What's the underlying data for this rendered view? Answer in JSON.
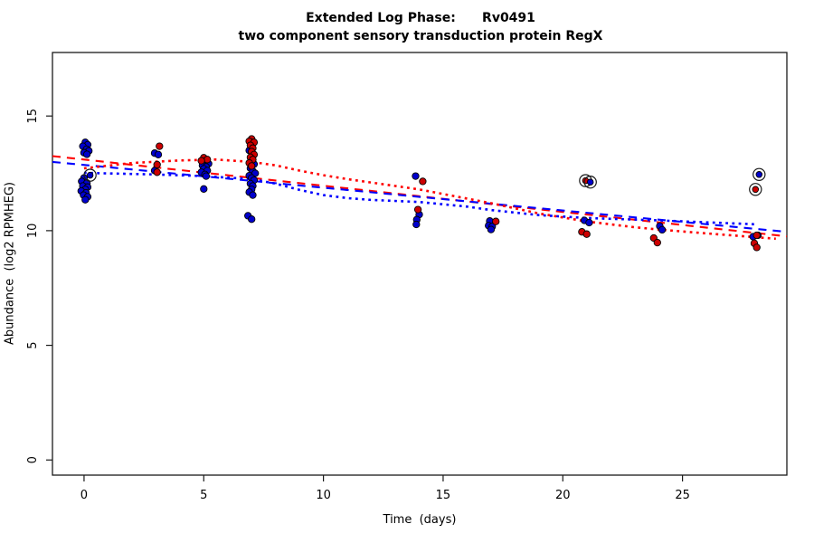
{
  "figure": {
    "background": "#ffffff"
  },
  "chart_data": {
    "type": "scatter",
    "title": "Extended Log Phase:      Rv0491",
    "subtitle": "two component sensory transduction protein RegX",
    "xlabel": "Time  (days)",
    "ylabel": "Abundance  (log2 RPMHEG)",
    "xlim": [
      -1.32,
      29.36
    ],
    "ylim": [
      -0.66,
      17.77
    ],
    "x_ticks": [
      0,
      5,
      10,
      15,
      20,
      25
    ],
    "y_ticks": [
      0,
      5,
      10,
      15
    ],
    "grid": false,
    "legend": "none",
    "axis_color": "#1a1a1a",
    "point_colors": {
      "red": "#CD0000",
      "blue": "#0000CD"
    },
    "line_colors": {
      "red": "#FF0000",
      "blue": "#0000FF"
    },
    "series": [
      {
        "name": "blue-points",
        "color": "blue",
        "points": [
          [
            0.05,
            13.85
          ],
          [
            0.15,
            13.75
          ],
          [
            -0.05,
            13.68
          ],
          [
            0.1,
            13.55
          ],
          [
            0.2,
            13.48
          ],
          [
            0.0,
            13.4
          ],
          [
            0.12,
            13.33
          ],
          [
            0.0,
            12.3
          ],
          [
            -0.1,
            12.15
          ],
          [
            0.12,
            12.08
          ],
          [
            -0.05,
            11.95
          ],
          [
            0.15,
            11.9
          ],
          [
            0.05,
            11.8
          ],
          [
            -0.12,
            11.73
          ],
          [
            0.08,
            11.65
          ],
          [
            -0.02,
            11.55
          ],
          [
            0.15,
            11.48
          ],
          [
            0.05,
            11.35
          ],
          [
            2.95,
            13.38
          ],
          [
            3.1,
            13.32
          ],
          [
            2.95,
            12.62
          ],
          [
            5.05,
            13.0
          ],
          [
            5.2,
            12.92
          ],
          [
            4.95,
            12.85
          ],
          [
            5.1,
            12.78
          ],
          [
            5.0,
            12.7
          ],
          [
            5.15,
            12.62
          ],
          [
            4.9,
            12.55
          ],
          [
            5.05,
            12.45
          ],
          [
            5.1,
            12.38
          ],
          [
            5.0,
            11.82
          ],
          [
            6.9,
            13.5
          ],
          [
            7.0,
            13.0
          ],
          [
            7.1,
            12.9
          ],
          [
            6.95,
            12.72
          ],
          [
            7.05,
            12.6
          ],
          [
            7.15,
            12.5
          ],
          [
            6.9,
            12.4
          ],
          [
            7.0,
            12.3
          ],
          [
            7.1,
            12.2
          ],
          [
            6.95,
            12.05
          ],
          [
            7.05,
            11.95
          ],
          [
            7.0,
            11.8
          ],
          [
            6.9,
            11.68
          ],
          [
            7.05,
            11.55
          ],
          [
            6.85,
            10.65
          ],
          [
            7.0,
            10.5
          ],
          [
            13.85,
            12.38
          ],
          [
            14.0,
            10.7
          ],
          [
            13.9,
            10.48
          ],
          [
            13.88,
            10.27
          ],
          [
            16.95,
            10.42
          ],
          [
            16.9,
            10.22
          ],
          [
            17.05,
            10.18
          ],
          [
            17.0,
            10.05
          ],
          [
            20.9,
            10.45
          ],
          [
            21.1,
            10.35
          ],
          [
            24.05,
            10.2
          ],
          [
            24.15,
            10.04
          ],
          [
            27.95,
            9.74
          ],
          [
            28.15,
            9.8
          ]
        ]
      },
      {
        "name": "red-points",
        "color": "red",
        "points": [
          [
            3.15,
            13.68
          ],
          [
            3.05,
            12.88
          ],
          [
            3.05,
            12.55
          ],
          [
            5.0,
            13.18
          ],
          [
            5.15,
            13.1
          ],
          [
            4.9,
            13.05
          ],
          [
            7.0,
            14.0
          ],
          [
            6.9,
            13.9
          ],
          [
            7.1,
            13.85
          ],
          [
            6.95,
            13.72
          ],
          [
            7.05,
            13.6
          ],
          [
            7.0,
            13.45
          ],
          [
            7.1,
            13.32
          ],
          [
            6.95,
            13.2
          ],
          [
            7.05,
            13.1
          ],
          [
            6.9,
            12.95
          ],
          [
            7.0,
            12.82
          ],
          [
            14.15,
            12.15
          ],
          [
            13.95,
            10.92
          ],
          [
            17.2,
            10.4
          ],
          [
            20.8,
            9.95
          ],
          [
            21.0,
            9.85
          ],
          [
            23.8,
            9.68
          ],
          [
            23.95,
            9.48
          ],
          [
            28.1,
            9.8
          ],
          [
            28.0,
            9.45
          ],
          [
            28.1,
            9.27
          ]
        ]
      }
    ],
    "circled_points": [
      {
        "x": 0.25,
        "y": 12.42,
        "color": "blue"
      },
      {
        "x": 20.95,
        "y": 12.18,
        "color": "red"
      },
      {
        "x": 21.15,
        "y": 12.12,
        "color": "blue"
      },
      {
        "x": 28.05,
        "y": 11.8,
        "color": "red"
      },
      {
        "x": 28.2,
        "y": 12.45,
        "color": "blue"
      }
    ],
    "fit_lines": [
      {
        "name": "red-dashed-fit",
        "color": "red",
        "dash": "dashed",
        "points": [
          [
            -1.32,
            13.25
          ],
          [
            29.36,
            9.75
          ]
        ]
      },
      {
        "name": "blue-dashed-fit",
        "color": "blue",
        "dash": "dashed",
        "points": [
          [
            -1.32,
            13.0
          ],
          [
            29.36,
            9.95
          ]
        ]
      },
      {
        "name": "red-dotted-fit",
        "color": "red",
        "dash": "dotted",
        "points": [
          [
            0,
            12.72
          ],
          [
            2,
            12.95
          ],
          [
            4,
            13.06
          ],
          [
            5.5,
            13.1
          ],
          [
            7,
            13.0
          ],
          [
            8,
            12.85
          ],
          [
            9,
            12.62
          ],
          [
            10,
            12.42
          ],
          [
            11,
            12.25
          ],
          [
            12,
            12.1
          ],
          [
            13,
            11.95
          ],
          [
            14,
            11.8
          ],
          [
            15.5,
            11.5
          ],
          [
            17,
            11.2
          ],
          [
            19,
            10.75
          ],
          [
            21,
            10.4
          ],
          [
            23,
            10.15
          ],
          [
            24,
            10.05
          ],
          [
            26,
            9.88
          ],
          [
            28.9,
            9.65
          ]
        ]
      },
      {
        "name": "blue-dotted-fit",
        "color": "blue",
        "dash": "dotted",
        "points": [
          [
            0,
            12.52
          ],
          [
            3,
            12.45
          ],
          [
            5,
            12.38
          ],
          [
            7,
            12.25
          ],
          [
            8,
            12.05
          ],
          [
            9,
            11.78
          ],
          [
            10,
            11.55
          ],
          [
            11,
            11.42
          ],
          [
            12,
            11.34
          ],
          [
            14,
            11.25
          ],
          [
            16,
            11.05
          ],
          [
            17,
            10.9
          ],
          [
            19,
            10.68
          ],
          [
            21,
            10.55
          ],
          [
            24,
            10.45
          ],
          [
            28,
            10.28
          ]
        ]
      }
    ]
  }
}
